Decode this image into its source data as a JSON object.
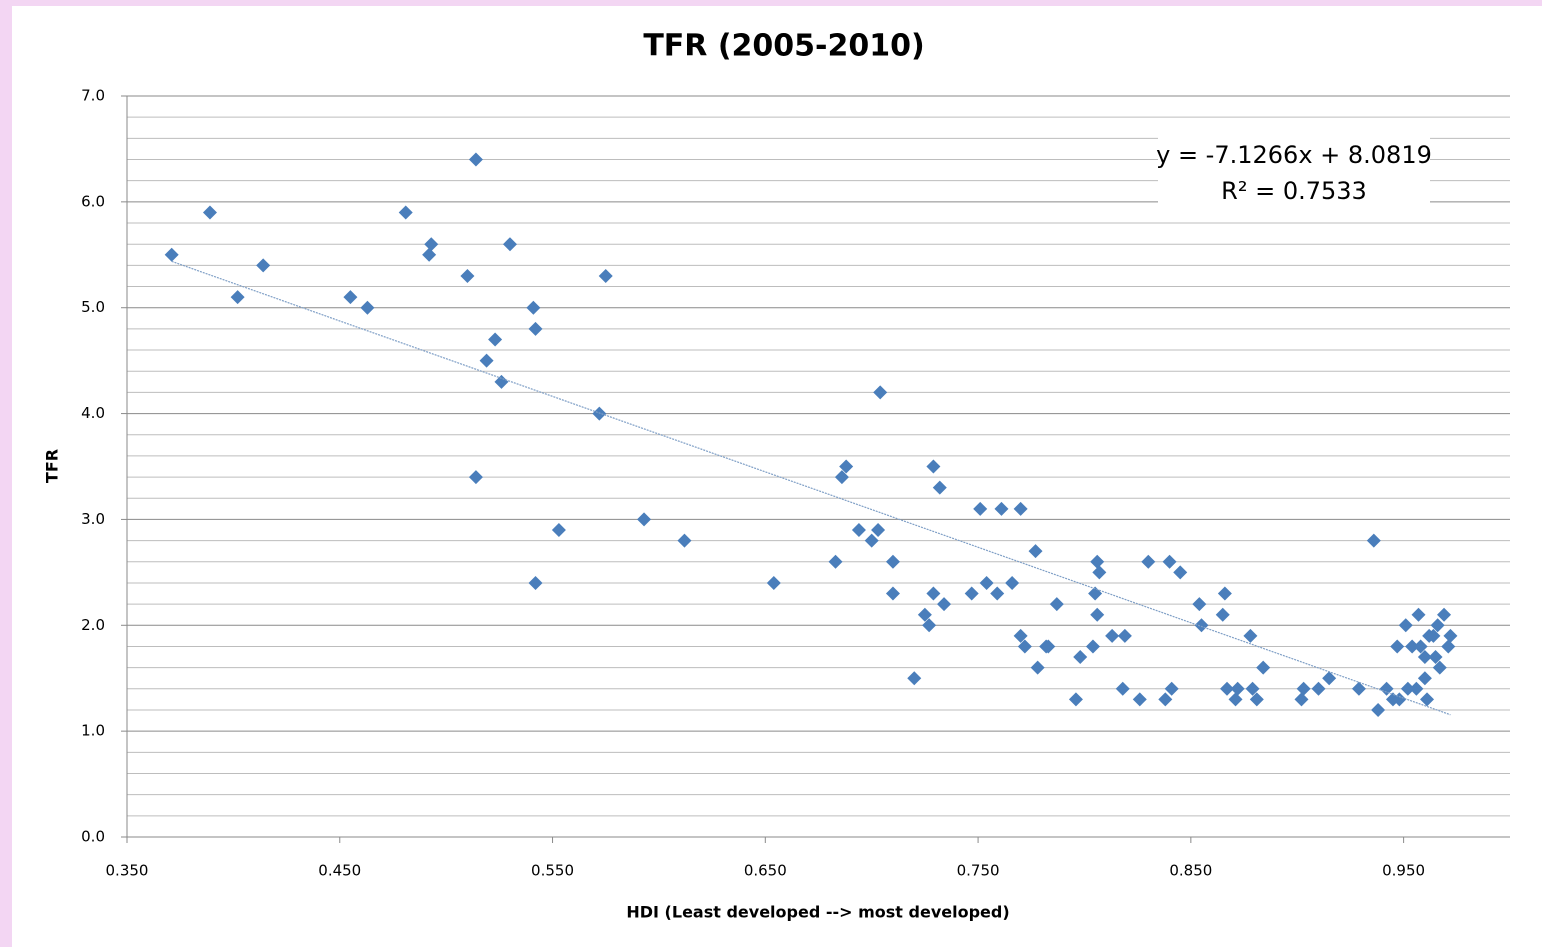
{
  "chart_data": {
    "type": "scatter",
    "title": "TFR (2005-2010)",
    "x_label": "HDI (Least developed --> most developed)",
    "y_label": "TFR",
    "color": "#4a7ebb",
    "grid": true,
    "xlim": [
      0.35,
      1.0
    ],
    "ylim": [
      0,
      7
    ],
    "xticks": [
      {
        "value": 0.35,
        "label": "0.350"
      },
      {
        "value": 0.45,
        "label": "0.450"
      },
      {
        "value": 0.55,
        "label": "0.550"
      },
      {
        "value": 0.65,
        "label": "0.650"
      },
      {
        "value": 0.75,
        "label": "0.750"
      },
      {
        "value": 0.85,
        "label": "0.850"
      },
      {
        "value": 0.95,
        "label": "0.950"
      }
    ],
    "yticks": [
      {
        "value": 0,
        "label": "0.0"
      },
      {
        "value": 1,
        "label": "1.0"
      },
      {
        "value": 2,
        "label": "2.0"
      },
      {
        "value": 3,
        "label": "3.0"
      },
      {
        "value": 4,
        "label": "4.0"
      },
      {
        "value": 5,
        "label": "5.0"
      },
      {
        "value": 6,
        "label": "6.0"
      },
      {
        "value": 7,
        "label": "7.0"
      }
    ],
    "yticks_minor": [
      0.2,
      0.4,
      0.6,
      0.8,
      1.2,
      1.4,
      1.6,
      1.8,
      2.2,
      2.4,
      2.6,
      2.8,
      3.2,
      3.4,
      3.6,
      3.8,
      4.2,
      4.4,
      4.6,
      4.8,
      5.2,
      5.4,
      5.6,
      5.8,
      6.2,
      6.4,
      6.6,
      6.8
    ],
    "x": [
      0.371,
      0.389,
      0.402,
      0.414,
      0.455,
      0.463,
      0.481,
      0.493,
      0.492,
      0.514,
      0.51,
      0.53,
      0.519,
      0.523,
      0.526,
      0.514,
      0.541,
      0.542,
      0.575,
      0.572,
      0.553,
      0.542,
      0.593,
      0.612,
      0.654,
      0.683,
      0.686,
      0.688,
      0.694,
      0.7,
      0.703,
      0.704,
      0.71,
      0.71,
      0.72,
      0.725,
      0.727,
      0.729,
      0.732,
      0.729,
      0.734,
      0.747,
      0.751,
      0.754,
      0.759,
      0.761,
      0.766,
      0.77,
      0.77,
      0.772,
      0.777,
      0.778,
      0.782,
      0.783,
      0.787,
      0.796,
      0.798,
      0.804,
      0.805,
      0.806,
      0.806,
      0.807,
      0.813,
      0.818,
      0.819,
      0.826,
      0.83,
      0.838,
      0.84,
      0.841,
      0.845,
      0.854,
      0.855,
      0.865,
      0.866,
      0.867,
      0.871,
      0.872,
      0.878,
      0.879,
      0.881,
      0.884,
      0.902,
      0.903,
      0.91,
      0.915,
      0.929,
      0.936,
      0.938,
      0.942,
      0.945,
      0.947,
      0.948,
      0.951,
      0.952,
      0.954,
      0.956,
      0.957,
      0.958,
      0.96,
      0.96,
      0.961,
      0.962,
      0.964,
      0.965,
      0.966,
      0.967,
      0.969,
      0.971,
      0.972
    ],
    "values": [
      5.5,
      5.9,
      5.1,
      5.4,
      5.1,
      5.0,
      5.9,
      5.6,
      5.5,
      6.4,
      5.3,
      5.6,
      4.5,
      4.7,
      4.3,
      3.4,
      5.0,
      4.8,
      5.3,
      4.0,
      2.9,
      2.4,
      3.0,
      2.8,
      2.4,
      2.6,
      3.4,
      3.5,
      2.9,
      2.8,
      2.9,
      4.2,
      2.6,
      2.3,
      1.5,
      2.1,
      2.0,
      3.5,
      3.3,
      2.3,
      2.2,
      2.3,
      3.1,
      2.4,
      2.3,
      3.1,
      2.4,
      1.9,
      3.1,
      1.8,
      2.7,
      1.6,
      1.8,
      1.8,
      2.2,
      1.3,
      1.7,
      1.8,
      2.3,
      2.6,
      2.1,
      2.5,
      1.9,
      1.4,
      1.9,
      1.3,
      2.6,
      1.3,
      2.6,
      1.4,
      2.5,
      2.2,
      2.0,
      2.1,
      2.3,
      1.4,
      1.3,
      1.4,
      1.9,
      1.4,
      1.3,
      1.6,
      1.3,
      1.4,
      1.4,
      1.5,
      1.4,
      2.8,
      1.2,
      1.4,
      1.3,
      1.8,
      1.3,
      2.0,
      1.4,
      1.8,
      1.4,
      2.1,
      1.8,
      1.7,
      1.5,
      1.3,
      1.9,
      1.9,
      1.7,
      2.0,
      1.6,
      2.1,
      1.8,
      1.9
    ],
    "trendline": {
      "slope": -7.1266,
      "intercept": 8.0819,
      "color": "#7f9fc6",
      "labels": [
        "y = -7.1266x + 8.0819",
        "R² = 0.7533"
      ]
    }
  }
}
